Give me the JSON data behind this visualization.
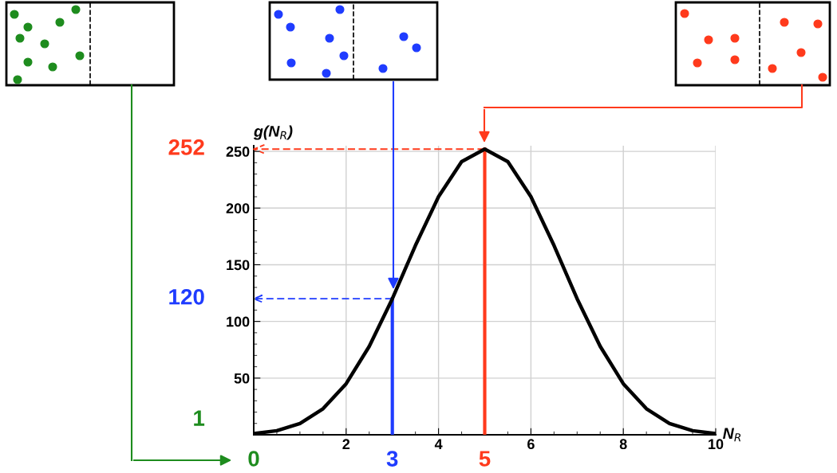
{
  "chart_data": {
    "type": "line",
    "xlabel": "N$_{R}$",
    "ylabel": "g(N$_{R}$)",
    "x": [
      0,
      0.5,
      1,
      1.5,
      2,
      2.5,
      3,
      3.5,
      4,
      4.5,
      5,
      5.5,
      6,
      6.5,
      7,
      7.5,
      8,
      8.5,
      9,
      9.5,
      10
    ],
    "series": [
      {
        "color": "#000000",
        "values": [
          1,
          3.6,
          10,
          23,
          45,
          78,
          120,
          167,
          210,
          241,
          252,
          241,
          210,
          167,
          120,
          78,
          45,
          23,
          10,
          3.6,
          1
        ]
      }
    ],
    "annotations": [
      "1",
      "0"
    ],
    "xlim": [
      0,
      10
    ],
    "ylim": [
      0,
      255
    ],
    "xticks": [
      2,
      4,
      6,
      8,
      10
    ],
    "yticks": [
      50,
      100,
      150,
      200,
      250
    ],
    "grid": true,
    "ref_lines": [
      {
        "axis": "x",
        "value": 3,
        "label": "3",
        "color": "#1f3cff",
        "line_style": "solid"
      },
      {
        "axis": "y",
        "value": 120,
        "label": "120",
        "color": "#1f3cff",
        "line_style": "dashed"
      },
      {
        "axis": "x",
        "value": 5,
        "label": "5",
        "color": "#ff3a1c",
        "line_style": "solid"
      },
      {
        "axis": "y",
        "value": 252,
        "label": "252",
        "color": "#ff3a1c",
        "line_style": "dashed"
      }
    ]
  }
}
